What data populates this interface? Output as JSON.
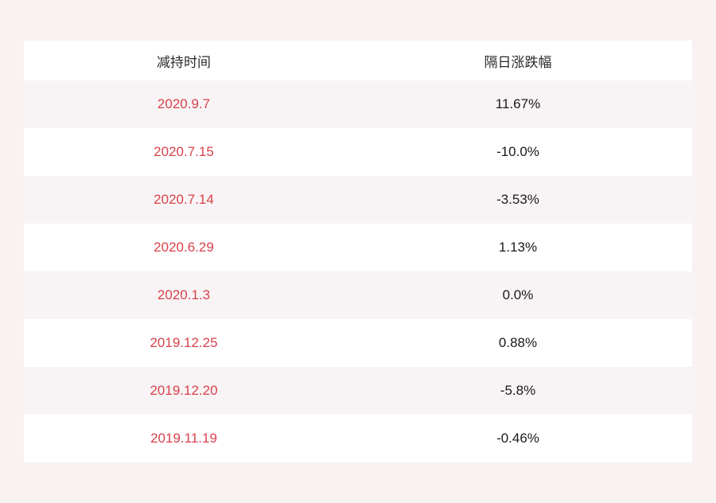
{
  "colors": {
    "page_background": "#f9f2f3",
    "row_stripe": "#f8f4f5",
    "row_plain": "#ffffff",
    "date_red": "#d9414b",
    "change_dark": "#1a1a1a"
  },
  "table": {
    "headers": [
      "减持时间",
      "隔日涨跌幅"
    ],
    "rows": [
      {
        "date": "2020.9.7",
        "change": "11.67%"
      },
      {
        "date": "2020.7.15",
        "change": "-10.0%"
      },
      {
        "date": "2020.7.14",
        "change": "-3.53%"
      },
      {
        "date": "2020.6.29",
        "change": "1.13%"
      },
      {
        "date": "2020.1.3",
        "change": "0.0%"
      },
      {
        "date": "2019.12.25",
        "change": "0.88%"
      },
      {
        "date": "2019.12.20",
        "change": "-5.8%"
      },
      {
        "date": "2019.11.19",
        "change": "-0.46%"
      }
    ]
  },
  "chart_data": {
    "type": "table",
    "title": "",
    "columns": [
      "减持时间",
      "隔日涨跌幅"
    ],
    "categories": [
      "2020.9.7",
      "2020.7.15",
      "2020.7.14",
      "2020.6.29",
      "2020.1.3",
      "2019.12.25",
      "2019.12.20",
      "2019.11.19"
    ],
    "values": [
      11.67,
      -10.0,
      -3.53,
      1.13,
      0.0,
      0.88,
      -5.8,
      -0.46
    ],
    "value_unit": "%"
  }
}
